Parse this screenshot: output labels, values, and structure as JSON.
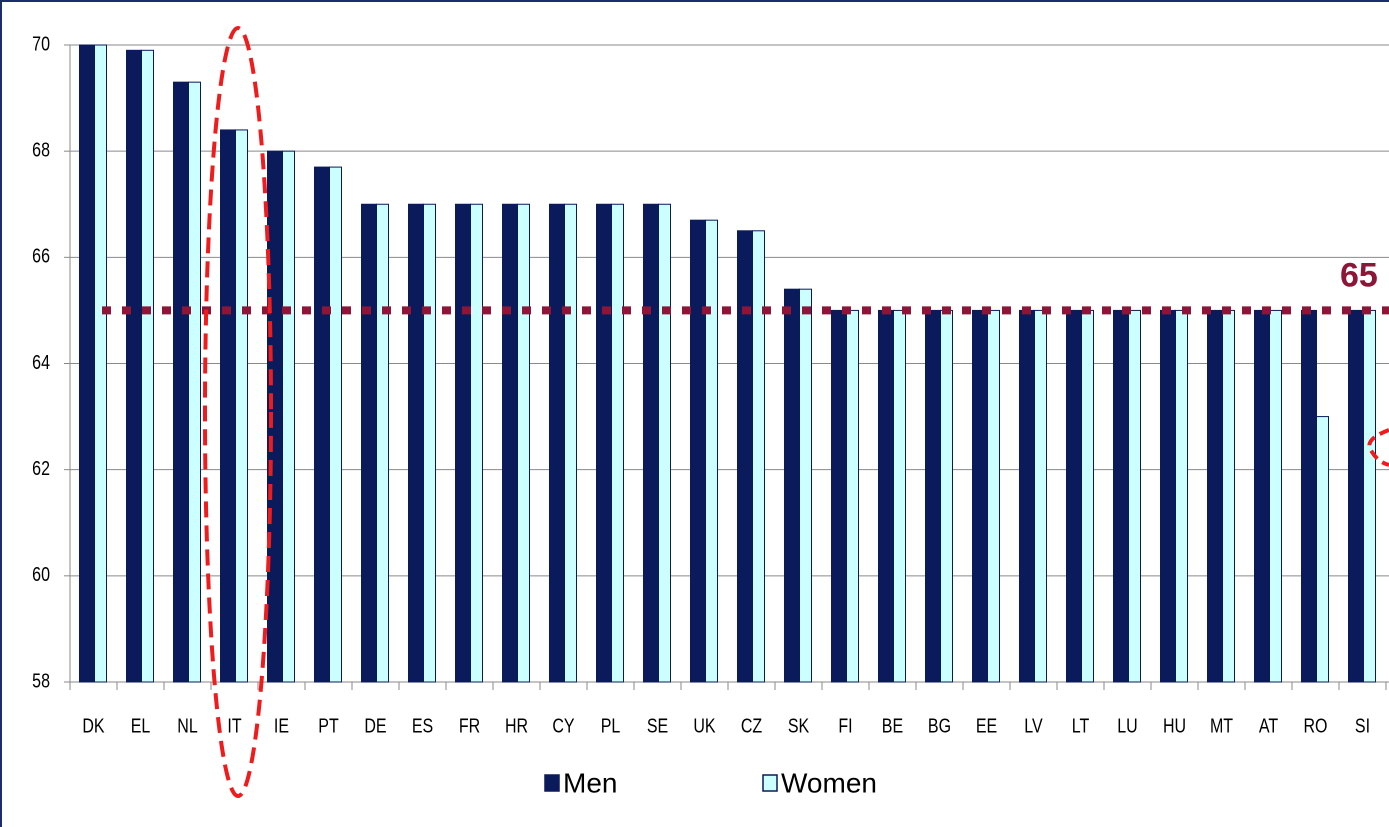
{
  "chart_data": {
    "type": "bar",
    "categories": [
      "DK",
      "EL",
      "NL",
      "IT",
      "IE",
      "PT",
      "DE",
      "ES",
      "FR",
      "HR",
      "CY",
      "PL",
      "SE",
      "UK",
      "CZ",
      "SK",
      "FI",
      "BE",
      "BG",
      "EE",
      "LV",
      "LT",
      "LU",
      "HU",
      "MT",
      "AT",
      "RO",
      "SI"
    ],
    "series": [
      {
        "name": "Men",
        "color": "#0b1a5a",
        "values": [
          70,
          69.9,
          69.3,
          68.4,
          68,
          67.7,
          67,
          67,
          67,
          67,
          67,
          67,
          67,
          66.7,
          66.5,
          65.4,
          65,
          65,
          65,
          65,
          65,
          65,
          65,
          65,
          65,
          65,
          65,
          65
        ]
      },
      {
        "name": "Women",
        "color": "#ccffff",
        "values": [
          70,
          69.9,
          69.3,
          68.4,
          68,
          67.7,
          67,
          67,
          67,
          67,
          67,
          67,
          67,
          66.7,
          66.5,
          65.4,
          65,
          65,
          65,
          65,
          65,
          65,
          65,
          65,
          65,
          65,
          63,
          65
        ]
      }
    ],
    "ylim": [
      58,
      70
    ],
    "yticks": [
      58,
      60,
      62,
      64,
      66,
      68,
      70
    ],
    "grid": true,
    "reference_line": 65,
    "reference_color": "#8c1538",
    "legend": "bottom"
  }
}
